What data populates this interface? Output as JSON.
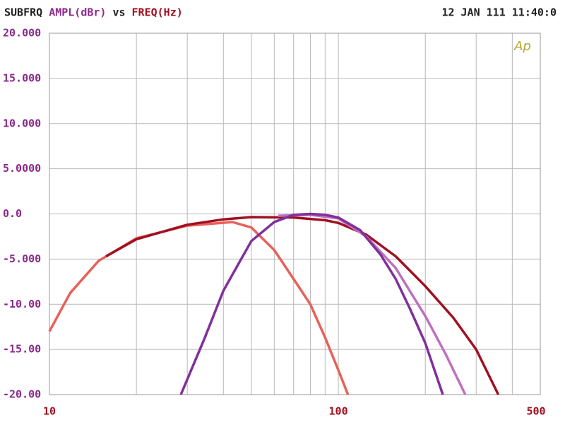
{
  "chart_data": {
    "type": "line",
    "title_parts": [
      {
        "text": "SUBFRQ",
        "color": "#222222"
      },
      {
        "text": "AMPL(dBr)",
        "color": "#8b2a8b"
      },
      {
        "text": "vs",
        "color": "#222222"
      },
      {
        "text": "FREQ(Hz)",
        "color": "#a01020"
      }
    ],
    "timestamp": "12 JAN 111 11:40:0",
    "logo": "Ap",
    "log_x": true,
    "xlim": [
      10,
      500
    ],
    "xticks": [
      10,
      100,
      500
    ],
    "x_minor_grid": [
      20,
      30,
      40,
      50,
      60,
      70,
      80,
      90,
      200,
      300,
      400
    ],
    "ylim": [
      -20,
      20
    ],
    "yticks": [
      {
        "value": 20,
        "label": "20.000"
      },
      {
        "value": 15,
        "label": "15.000"
      },
      {
        "value": 10,
        "label": "10.000"
      },
      {
        "value": 5,
        "label": "5.0000"
      },
      {
        "value": 0,
        "label": "0.0"
      },
      {
        "value": -5,
        "label": "-5.000"
      },
      {
        "value": -10,
        "label": "-10.00"
      },
      {
        "value": -15,
        "label": "-15.00"
      },
      {
        "value": -20,
        "label": "-20.00"
      }
    ],
    "y_label_color": "#8b2a8b",
    "x_label_color": "#a01020",
    "grid": true,
    "series": [
      {
        "color": "#e8605a",
        "x": [
          10,
          11.8,
          14.8,
          20,
          30,
          43,
          50,
          60,
          70,
          80,
          90,
          100,
          108
        ],
        "values": [
          -13,
          -8.75,
          -5.2,
          -2.7,
          -1.3,
          -0.9,
          -1.5,
          -4,
          -7.2,
          -10,
          -13.7,
          -17.3,
          -20
        ]
      },
      {
        "color": "#a01020",
        "x": [
          15.7,
          20,
          30,
          40,
          50,
          70,
          90,
          100,
          125,
          158,
          200,
          250,
          300,
          358
        ],
        "values": [
          -4.7,
          -2.8,
          -1.2,
          -0.6,
          -0.35,
          -0.4,
          -0.7,
          -1,
          -2.3,
          -4.7,
          -8,
          -11.5,
          -15,
          -20
        ]
      },
      {
        "color": "#c070c0",
        "x": [
          62,
          80,
          100,
          125,
          158,
          200,
          235,
          275
        ],
        "values": [
          -0.2,
          -0.1,
          -0.5,
          -2.5,
          -6,
          -11.3,
          -15.5,
          -20
        ]
      },
      {
        "color": "#80309a",
        "x": [
          28.5,
          34.4,
          40,
          50,
          60,
          70,
          80,
          90,
          100,
          119,
          140,
          158,
          177,
          200,
          230
        ],
        "values": [
          -20,
          -13.8,
          -8.5,
          -3,
          -0.9,
          -0.1,
          0,
          -0.1,
          -0.4,
          -1.8,
          -4.5,
          -7.2,
          -10.5,
          -14.3,
          -20
        ]
      }
    ]
  }
}
